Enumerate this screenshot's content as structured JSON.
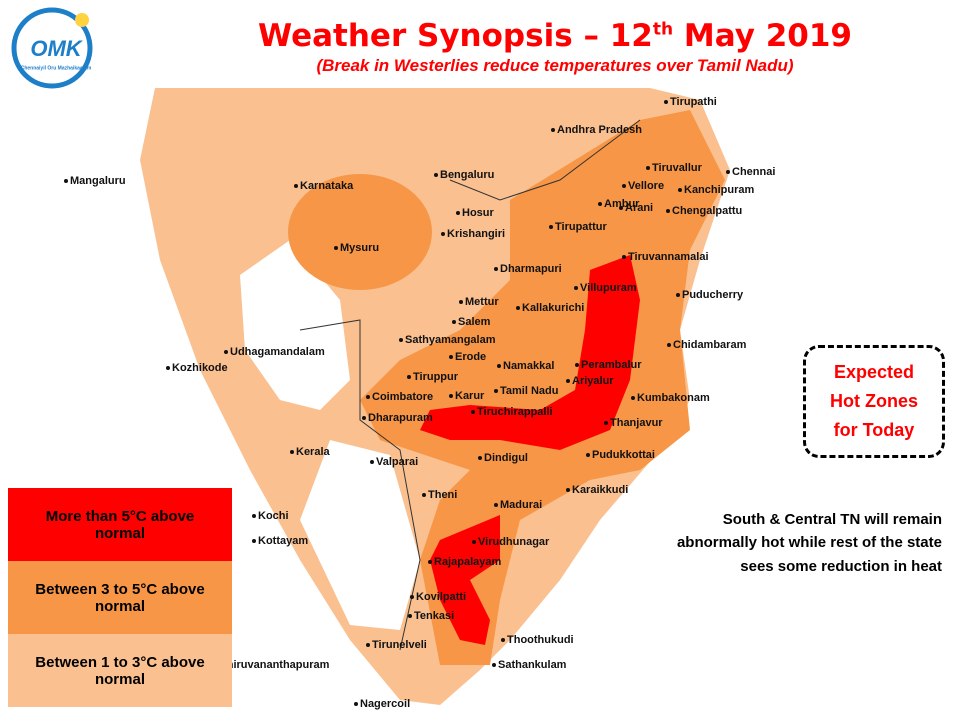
{
  "logo": {
    "text": "OMK",
    "tagline": "Chennaiyil Oru Mazhaikaalam"
  },
  "header": {
    "title": {
      "before": "Weather Synopsis – 12",
      "sup": "th",
      "after": " May 2019"
    },
    "subtitle": "(Break in Westerlies reduce temperatures over Tamil Nadu)"
  },
  "places": [
    "Tirupathi",
    "Andhra Pradesh",
    "Tiruvallur",
    "Chennai",
    "Vellore",
    "Kanchipuram",
    "Mangaluru",
    "Karnataka",
    "Bengaluru",
    "Hosur",
    "Ambur",
    "Arani",
    "Chengalpattu",
    "Krishangiri",
    "Tirupattur",
    "Mysuru",
    "Tiruvannamalai",
    "Dharmapuri",
    "Villupuram",
    "Puducherry",
    "Mettur",
    "Kallakurichi",
    "Salem",
    "Sathyamangalam",
    "Udhagamandalam",
    "Chidambaram",
    "Kozhikode",
    "Erode",
    "Perambalur",
    "Namakkal",
    "Tiruppur",
    "Tamil Nadu",
    "Ariyalur",
    "Coimbatore",
    "Karur",
    "Kumbakonam",
    "Dharapuram",
    "Tiruchirappalli",
    "Thanjavur",
    "Kerala",
    "Dindigul",
    "Pudukkottai",
    "Valparai",
    "Theni",
    "Karaikkudi",
    "Madurai",
    "Kochi",
    "Kottayam",
    "Virudhunagar",
    "Rajapalayam",
    "Kovilpatti",
    "Tenkasi",
    "Thoothukudi",
    "Tirunelveli",
    "Sathankulam",
    "Thiruvananthapuram",
    "Nagercoil"
  ],
  "legend": [
    {
      "label": "More than 5°C above normal",
      "color": "#ff0000"
    },
    {
      "label": "Between 3 to 5°C above normal",
      "color": "#f79646"
    },
    {
      "label": "Between 1 to 3°C above normal",
      "color": "#fac090"
    }
  ],
  "callout": "Expected Hot Zones for Today",
  "note": "South & Central TN will remain abnormally hot while rest of the state sees some reduction in heat"
}
